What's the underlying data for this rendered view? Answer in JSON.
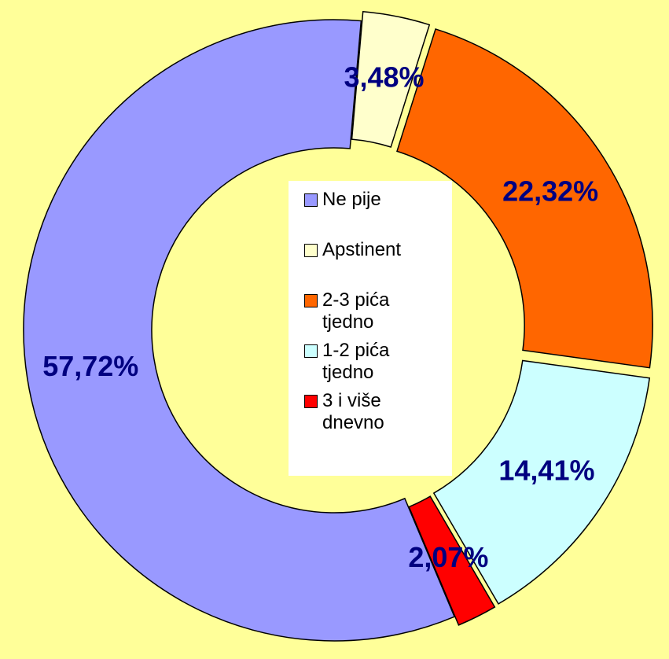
{
  "chart_data": {
    "type": "donut",
    "categories": [
      "Ne pije",
      "Apstinent",
      "2-3 pića tjedno",
      "1-2 pića tjedno",
      "3 i više dnevno"
    ],
    "values": [
      57.72,
      3.48,
      22.32,
      14.41,
      2.07
    ],
    "value_labels": [
      "57,72%",
      "3,48%",
      "22,32%",
      "14,41%",
      "2,07%"
    ],
    "colors": [
      "#9999ff",
      "#ffffcc",
      "#ff6600",
      "#ccffff",
      "#ff0000"
    ],
    "legend": "center"
  }
}
